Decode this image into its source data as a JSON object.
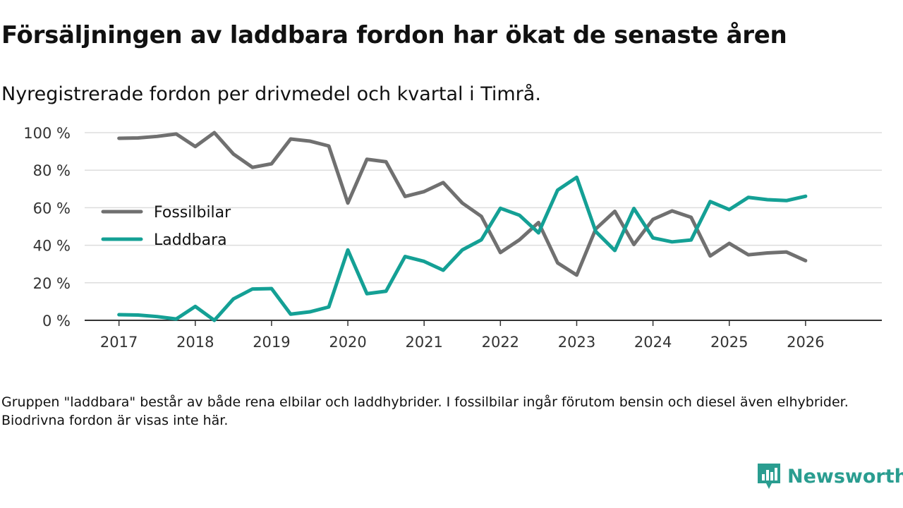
{
  "title": "Försäljningen av laddbara fordon har ökat de senaste åren",
  "subtitle": "Nyregistrerade fordon per drivmedel och kvartal i Timrå.",
  "note": "Gruppen \"laddbara\" består av både rena elbilar och laddhybrider. I fossilbilar ingår förutom bensin och diesel även elhybrider. Biodrivna fordon är visas inte här.",
  "brand": {
    "name": "Newsworthy",
    "color": "#2a9d90"
  },
  "chart_data": {
    "type": "line",
    "title": "Försäljningen av laddbara fordon har ökat de senaste åren",
    "xlabel": "",
    "ylabel": "",
    "x": [
      2017.0,
      2017.25,
      2017.5,
      2017.75,
      2018.0,
      2018.25,
      2018.5,
      2018.75,
      2019.0,
      2019.25,
      2019.5,
      2019.75,
      2020.0,
      2020.25,
      2020.5,
      2020.75,
      2021.0,
      2021.25,
      2021.5,
      2021.75,
      2022.0,
      2022.25,
      2022.5,
      2022.75,
      2023.0,
      2023.25,
      2023.5,
      2023.75,
      2024.0,
      2024.25,
      2024.5,
      2024.75,
      2025.0,
      2025.25,
      2025.5,
      2025.75,
      2026.0
    ],
    "xlim": [
      2016.55,
      2027.0
    ],
    "ylim": [
      0,
      100
    ],
    "x_ticks": [
      2017,
      2018,
      2019,
      2020,
      2021,
      2022,
      2023,
      2024,
      2025,
      2026
    ],
    "x_tick_labels": [
      "2017",
      "2018",
      "2019",
      "2020",
      "2021",
      "2022",
      "2023",
      "2024",
      "2025",
      "2026"
    ],
    "y_ticks": [
      0,
      20,
      40,
      60,
      80,
      100
    ],
    "y_tick_labels": [
      "0 %",
      "20 %",
      "40 %",
      "60 %",
      "80 %",
      "100 %"
    ],
    "grid": true,
    "legend_position": "left",
    "series": [
      {
        "name": "Fossilbilar",
        "color": "#707070",
        "values": [
          97,
          97.2,
          98,
          99.3,
          92.6,
          100,
          88.6,
          81.5,
          83.4,
          96.6,
          95.5,
          92.9,
          62.5,
          85.8,
          84.5,
          66,
          68.6,
          73.4,
          62.5,
          55.4,
          36.1,
          42.9,
          52.1,
          30.6,
          24.1,
          48.7,
          58.1,
          40.4,
          53.8,
          58.3,
          54.9,
          34.3,
          41,
          34.9,
          35.9,
          36.4,
          31.8
        ]
      },
      {
        "name": "Laddbara",
        "color": "#14a095",
        "values": [
          3,
          2.8,
          2,
          0.7,
          7.4,
          0,
          11.4,
          16.7,
          16.9,
          3.3,
          4.5,
          7.1,
          37.5,
          14.2,
          15.5,
          34,
          31.4,
          26.7,
          37.5,
          42.9,
          59.7,
          56,
          46.6,
          69.4,
          76.2,
          47.3,
          37.2,
          59.6,
          43.9,
          41.8,
          42.8,
          63.3,
          59,
          65.5,
          64.3,
          63.8,
          66.1
        ]
      }
    ]
  }
}
